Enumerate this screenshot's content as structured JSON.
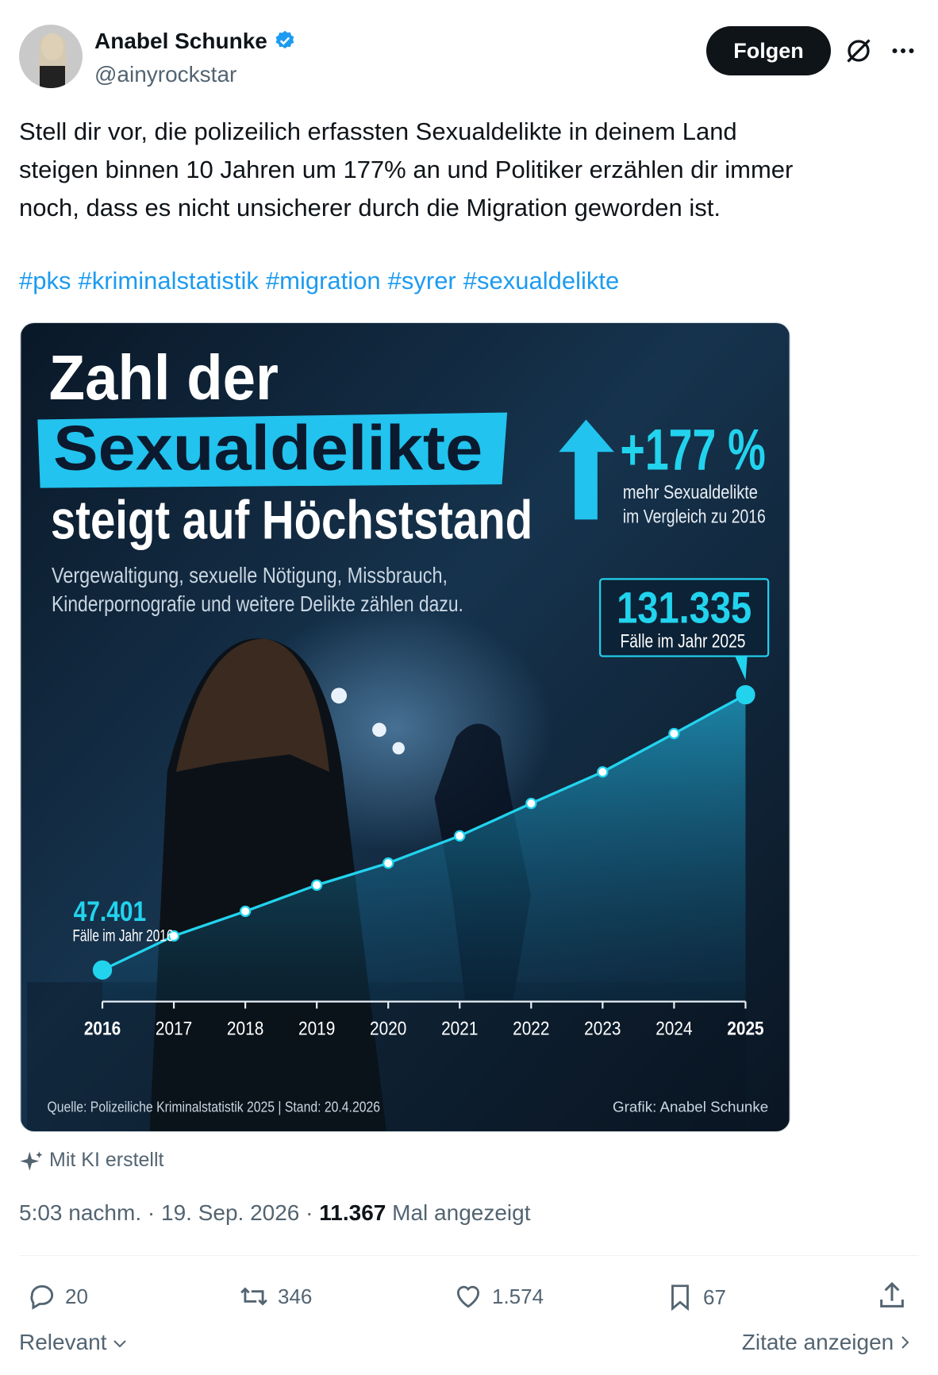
{
  "author": {
    "name": "Anabel Schunke",
    "handle": "@ainyrockstar"
  },
  "follow_button": "Folgen",
  "tweet": {
    "text_lines": [
      "Stell dir vor, die polizeilich erfassten Sexualdelikte in deinem Land",
      "steigen binnen 10 Jahren um 177% an und Politiker erzählen dir immer",
      "noch, dass es nicht unsicherer durch die Migration geworden ist."
    ],
    "hashtags": [
      "#pks",
      "#kriminalstatistik",
      "#migration",
      "#syrer",
      "#sexualdelikte"
    ]
  },
  "infographic": {
    "title_lines": [
      "Zahl der",
      "Sexualdelikte",
      "steigt auf Höchststand"
    ],
    "subtitle_lines": [
      "Vergewaltigung, sexuelle Nötigung, Missbrauch,",
      "Kinderpornografie und weitere Delikte zählen dazu."
    ],
    "change": {
      "label": "+177 %",
      "note_lines": [
        "mehr Sexualdelikte",
        "im Vergleich zu 2016"
      ]
    },
    "chart": {
      "type": "line",
      "categories": [
        "2016",
        "2017",
        "2018",
        "2019",
        "2020",
        "2021",
        "2022",
        "2023",
        "2024",
        "2025"
      ],
      "values": [
        47401,
        57800,
        65300,
        73300,
        80000,
        88300,
        98200,
        107800,
        119500,
        131335
      ],
      "color": "#22d3ee",
      "start": {
        "label": "47.401",
        "note": "Fälle im Jahr 2016"
      },
      "end": {
        "label": "131.335",
        "note": "Fälle im Jahr 2025"
      }
    },
    "source": "Quelle: Polizeiliche Kriminalstatistik 2025  |  Stand: 20.4.2026",
    "credit": "Grafik: Anabel Schunke"
  },
  "ai_note": "Mit KI erstellt",
  "meta": {
    "time": "5:03 nachm.",
    "separator": "·",
    "date": "19. Sep. 2026",
    "views": "11.367",
    "views_suffix": "Mal angezeigt"
  },
  "actions": {
    "replies": "20",
    "reposts": "346",
    "likes": "1.574",
    "bookmarks": "67"
  },
  "footer": {
    "sort": "Relevant",
    "quotes": "Zitate anzeigen"
  }
}
